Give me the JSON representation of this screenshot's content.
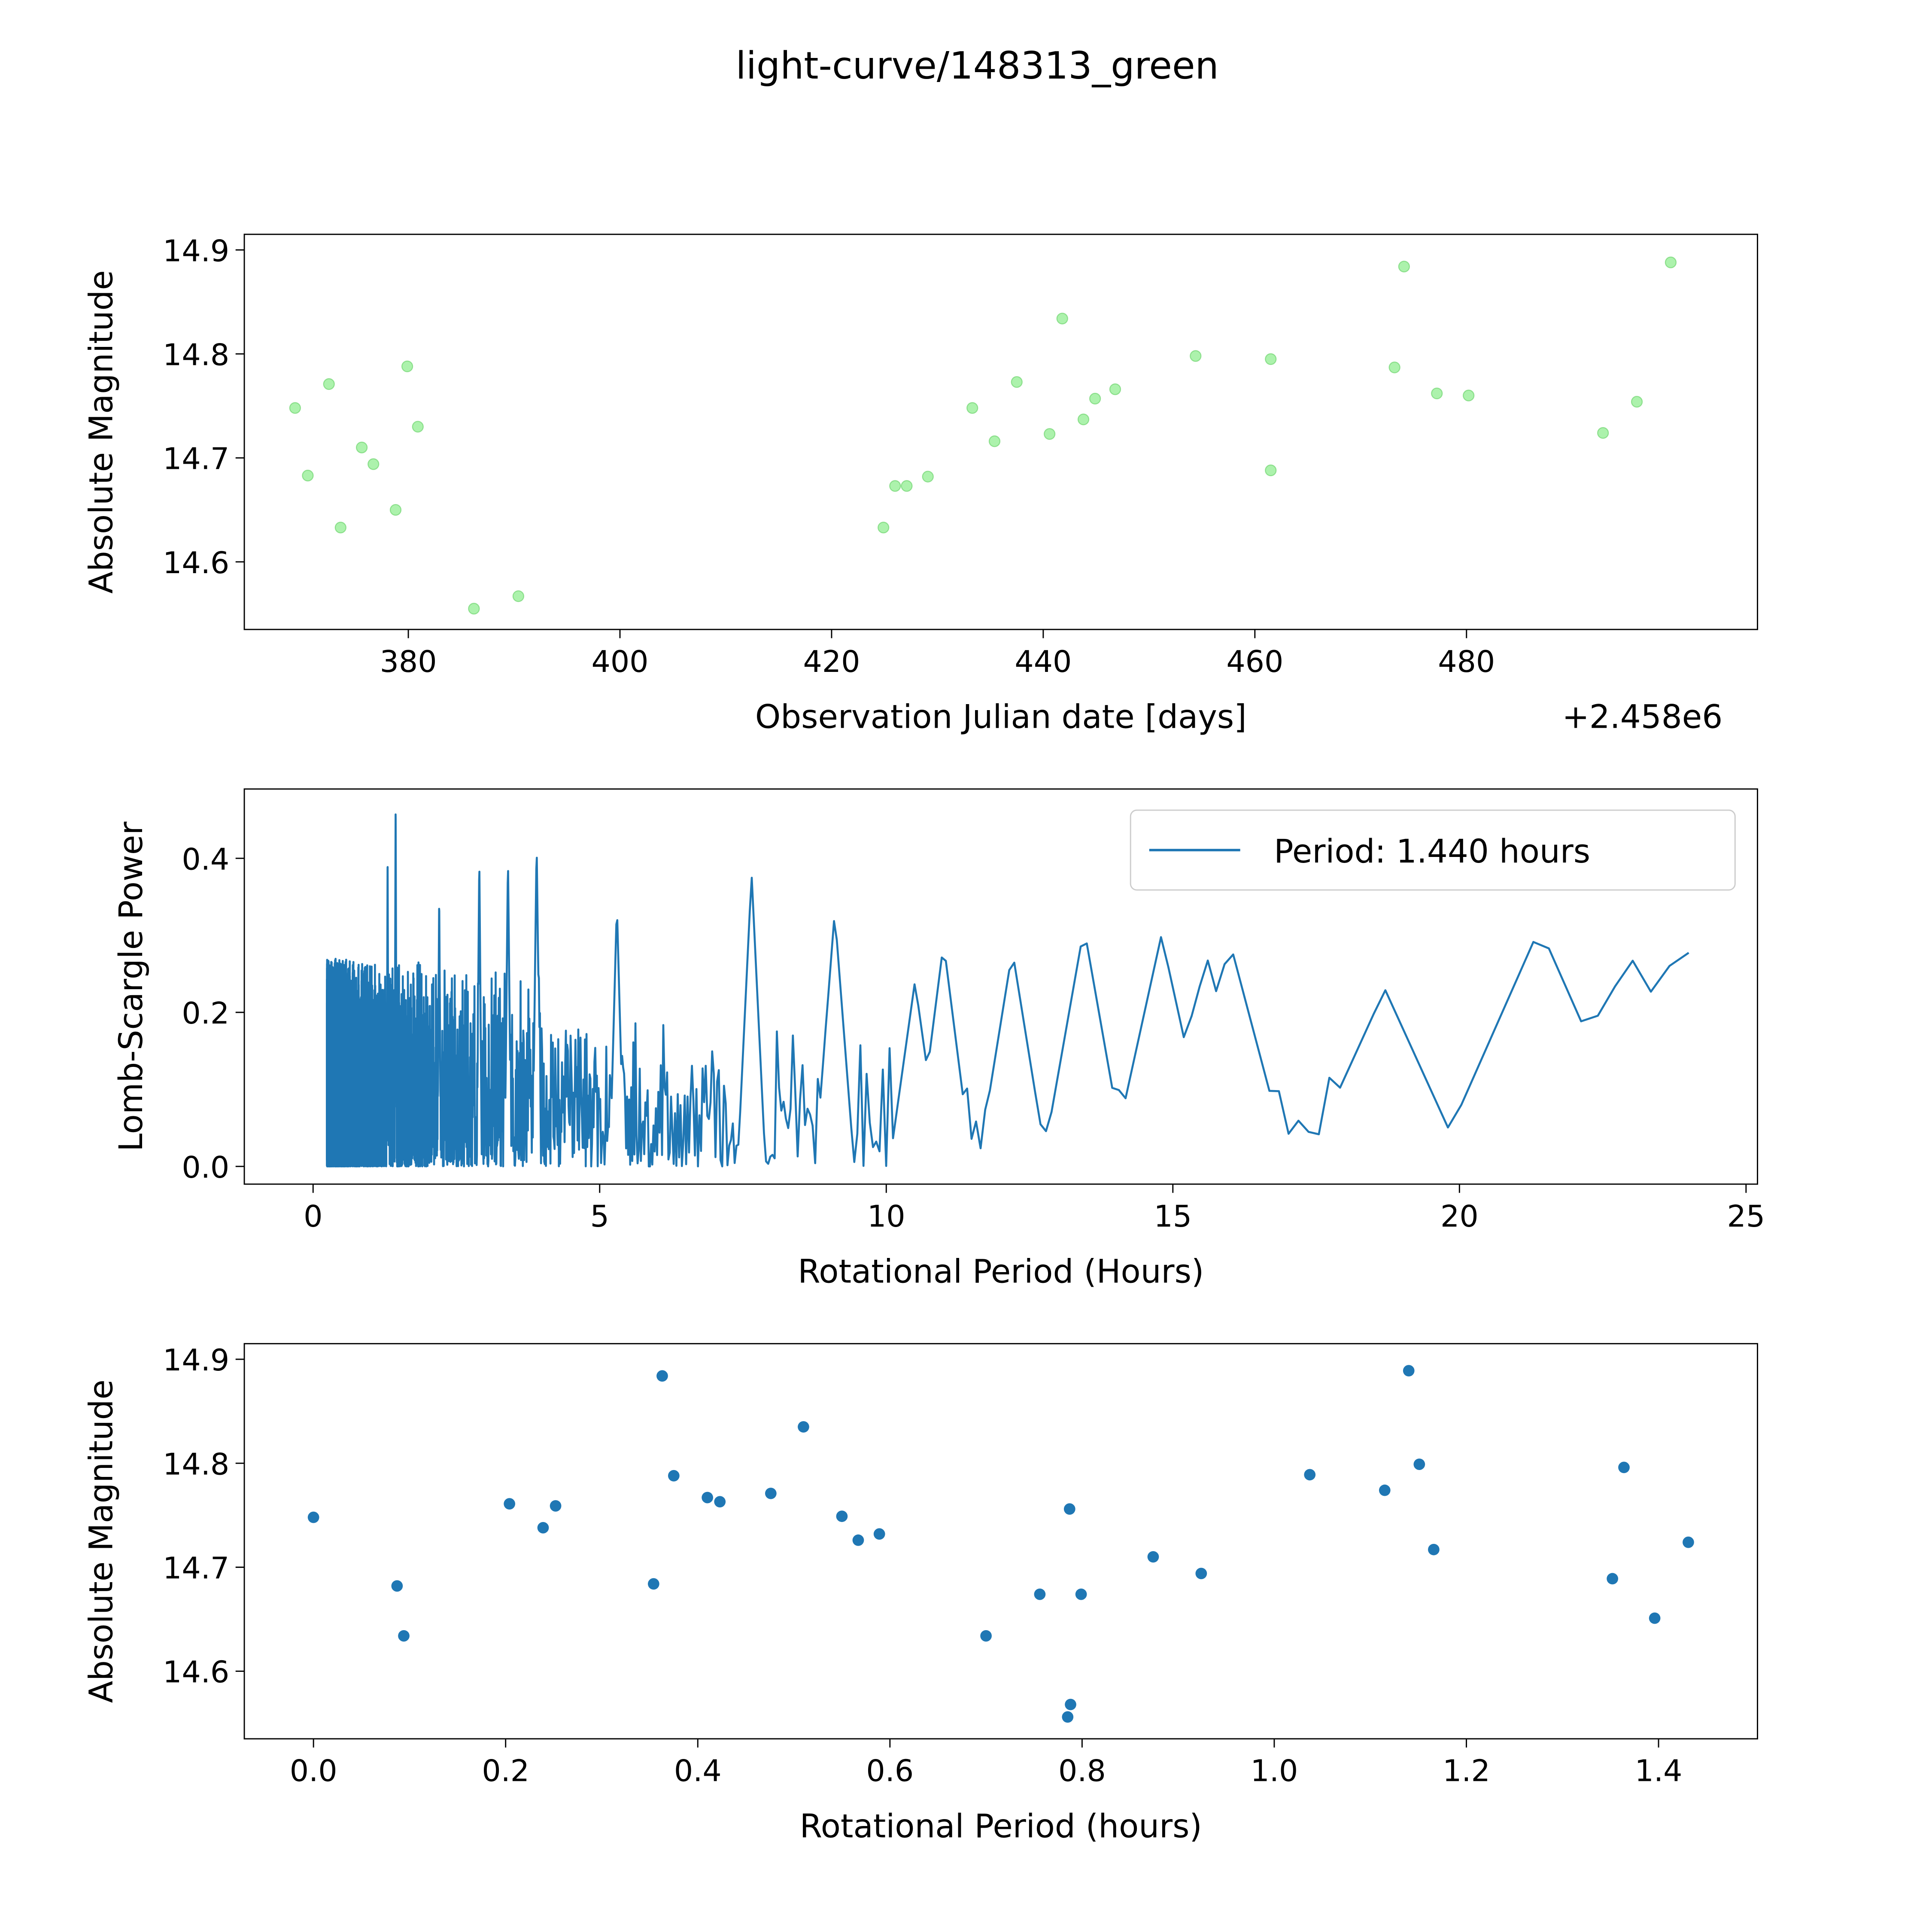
{
  "title": "light-curve/148313_green",
  "chart_data": [
    {
      "type": "scatter",
      "xlabel": "Observation Julian date [days]",
      "ylabel": "Absolute Magnitude",
      "x_offset_label": "+2.458e6",
      "xlim": [
        364.5,
        507.5
      ],
      "ylim": [
        14.535,
        14.915
      ],
      "xticks": [
        380,
        400,
        420,
        440,
        460,
        480
      ],
      "yticks": [
        14.6,
        14.7,
        14.8,
        14.9
      ],
      "ytick_labels": [
        "14.6",
        "14.7",
        "14.8",
        "14.9"
      ],
      "color": "#90ee90",
      "x": [
        369.3,
        370.5,
        372.5,
        373.6,
        375.6,
        376.7,
        378.8,
        379.9,
        380.9,
        386.2,
        390.4,
        424.9,
        426.0,
        427.1,
        429.1,
        433.3,
        435.4,
        437.5,
        440.6,
        441.8,
        443.8,
        444.9,
        446.8,
        454.4,
        461.5,
        461.5,
        473.2,
        474.1,
        477.2,
        480.2,
        492.9,
        496.1,
        499.3
      ],
      "y": [
        14.748,
        14.683,
        14.771,
        14.633,
        14.71,
        14.694,
        14.65,
        14.788,
        14.73,
        14.555,
        14.567,
        14.633,
        14.673,
        14.673,
        14.682,
        14.748,
        14.716,
        14.773,
        14.723,
        14.834,
        14.737,
        14.757,
        14.766,
        14.798,
        14.795,
        14.688,
        14.787,
        14.884,
        14.762,
        14.76,
        14.724,
        14.754,
        14.888
      ]
    },
    {
      "type": "line",
      "xlabel": "Rotational Period (Hours)",
      "ylabel": "Lomb-Scargle Power",
      "xlim": [
        -1.2,
        25.2
      ],
      "ylim": [
        -0.023,
        0.49
      ],
      "xticks": [
        0,
        5,
        10,
        15,
        20,
        25
      ],
      "yticks": [
        0.0,
        0.2,
        0.4
      ],
      "ytick_labels": [
        "0.0",
        "0.2",
        "0.4"
      ],
      "color": "#1f77b4",
      "legend": "Period: 1.440 hours",
      "legend_position": "top-right",
      "period_range": [
        0.24,
        24.0
      ],
      "peaks": [
        [
          1.44,
          0.47
        ],
        [
          1.3,
          0.4
        ],
        [
          2.2,
          0.35
        ],
        [
          2.9,
          0.4
        ],
        [
          3.4,
          0.4
        ],
        [
          3.9,
          0.42
        ],
        [
          5.3,
          0.34
        ],
        [
          7.65,
          0.38
        ],
        [
          9.1,
          0.33
        ],
        [
          10.5,
          0.24
        ],
        [
          11.0,
          0.29
        ],
        [
          12.2,
          0.28
        ],
        [
          13.45,
          0.31
        ],
        [
          14.8,
          0.3
        ],
        [
          15.6,
          0.27
        ],
        [
          16.0,
          0.29
        ],
        [
          18.7,
          0.23
        ],
        [
          21.4,
          0.31
        ],
        [
          23.0,
          0.27
        ],
        [
          23.9,
          0.29
        ]
      ]
    },
    {
      "type": "scatter",
      "xlabel": "Rotational Period (hours)",
      "ylabel": "Absolute Magnitude",
      "xlim": [
        -0.072,
        1.503
      ],
      "ylim": [
        14.535,
        14.915
      ],
      "xticks": [
        0.0,
        0.2,
        0.4,
        0.6,
        0.8,
        1.0,
        1.2,
        1.4
      ],
      "xtick_labels": [
        "0.0",
        "0.2",
        "0.4",
        "0.6",
        "0.8",
        "1.0",
        "1.2",
        "1.4"
      ],
      "yticks": [
        14.6,
        14.7,
        14.8,
        14.9
      ],
      "ytick_labels": [
        "14.6",
        "14.7",
        "14.8",
        "14.9"
      ],
      "color": "#1f77b4",
      "x": [
        0,
        0.087,
        0.094,
        0.204,
        0.239,
        0.252,
        0.354,
        0.363,
        0.375,
        0.41,
        0.423,
        0.476,
        0.51,
        0.55,
        0.567,
        0.589,
        0.7,
        0.756,
        0.787,
        0.788,
        0.785,
        0.799,
        0.874,
        0.924,
        1.037,
        1.115,
        1.14,
        1.151,
        1.166,
        1.352,
        1.364,
        1.396,
        1.431
      ],
      "y": [
        14.748,
        14.682,
        14.634,
        14.761,
        14.738,
        14.759,
        14.684,
        14.884,
        14.788,
        14.767,
        14.763,
        14.771,
        14.835,
        14.749,
        14.726,
        14.732,
        14.634,
        14.674,
        14.756,
        14.568,
        14.556,
        14.674,
        14.71,
        14.694,
        14.789,
        14.774,
        14.889,
        14.799,
        14.717,
        14.689,
        14.796,
        14.651,
        14.724
      ]
    }
  ]
}
